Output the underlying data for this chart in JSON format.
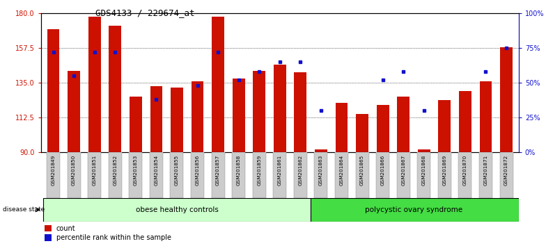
{
  "title": "GDS4133 / 229674_at",
  "samples": [
    "GSM201849",
    "GSM201850",
    "GSM201851",
    "GSM201852",
    "GSM201853",
    "GSM201854",
    "GSM201855",
    "GSM201856",
    "GSM201857",
    "GSM201858",
    "GSM201859",
    "GSM201861",
    "GSM201862",
    "GSM201863",
    "GSM201864",
    "GSM201865",
    "GSM201866",
    "GSM201867",
    "GSM201868",
    "GSM201869",
    "GSM201870",
    "GSM201871",
    "GSM201872"
  ],
  "counts": [
    170,
    143,
    178,
    172,
    126,
    133,
    132,
    136,
    178,
    138,
    143,
    147,
    142,
    92,
    122,
    115,
    121,
    126,
    92,
    124,
    130,
    136,
    158
  ],
  "percentiles": [
    72,
    55,
    72,
    72,
    null,
    38,
    null,
    48,
    72,
    52,
    58,
    65,
    65,
    30,
    null,
    null,
    52,
    58,
    30,
    null,
    null,
    58,
    75
  ],
  "group1_label": "obese healthy controls",
  "group1_count": 13,
  "group2_label": "polycystic ovary syndrome",
  "group2_count": 10,
  "ylim_left": [
    90,
    180
  ],
  "ylim_right": [
    0,
    100
  ],
  "yticks_left": [
    90,
    112.5,
    135,
    157.5,
    180
  ],
  "yticks_right": [
    0,
    25,
    50,
    75,
    100
  ],
  "bar_color": "#cc1100",
  "dot_color": "#1111cc",
  "group1_bg": "#ccffcc",
  "group2_bg": "#44dd44",
  "label_bg": "#cccccc"
}
